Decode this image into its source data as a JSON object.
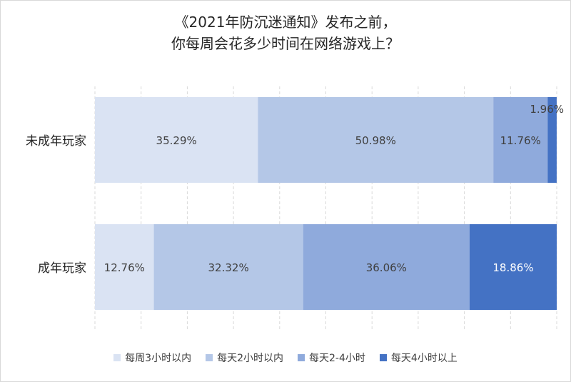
{
  "chart_data": {
    "type": "bar",
    "orientation": "horizontal",
    "stacked": true,
    "title_lines": [
      "《2021年防沉迷通知》发布之前，",
      "你每周会花多少时间在网络游戏上？"
    ],
    "categories": [
      "未成年玩家",
      "成年玩家"
    ],
    "series": [
      {
        "name": "每周3小时以内",
        "color": "#dae3f3",
        "values": [
          35.29,
          12.76
        ],
        "labels": [
          "35.29%",
          "12.76%"
        ]
      },
      {
        "name": "每天2小时以内",
        "color": "#b4c7e7",
        "values": [
          50.98,
          32.32
        ],
        "labels": [
          "50.98%",
          "32.32%"
        ]
      },
      {
        "name": "每天2-4小时",
        "color": "#8faadc",
        "values": [
          11.76,
          36.06
        ],
        "labels": [
          "11.76%",
          "36.06%"
        ]
      },
      {
        "name": "每天4小时以上",
        "color": "#4472c4",
        "values": [
          1.96,
          18.86
        ],
        "labels": [
          "1.96%",
          "18.86%"
        ]
      }
    ],
    "xlim": [
      0,
      100
    ],
    "grid": "vertical",
    "legend_position": "bottom"
  }
}
